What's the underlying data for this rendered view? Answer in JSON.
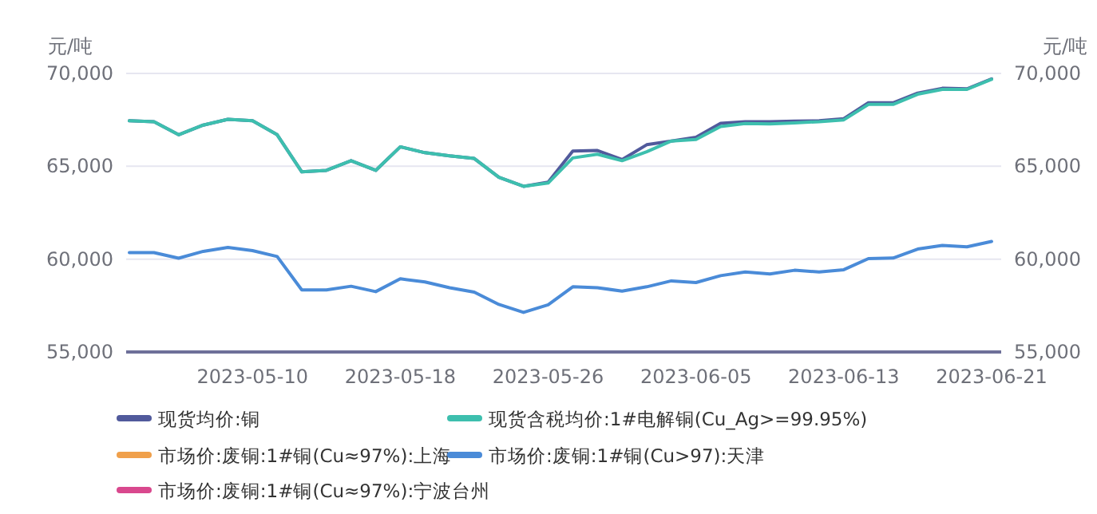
{
  "chart_data": {
    "type": "line",
    "ylabel": "元/吨",
    "y2label": "元/吨",
    "categories": [
      null,
      null,
      null,
      null,
      null,
      "2023-05-10",
      null,
      null,
      null,
      null,
      null,
      "2023-05-18",
      null,
      null,
      null,
      null,
      null,
      "2023-05-26",
      null,
      null,
      null,
      null,
      null,
      "2023-06-05",
      null,
      null,
      null,
      null,
      null,
      "2023-06-13",
      null,
      null,
      null,
      null,
      null,
      "2023-06-21"
    ],
    "ylim": [
      55000,
      70000
    ],
    "yticks": [
      {
        "value": 55000,
        "label": "55,000"
      },
      {
        "value": 60000,
        "label": "60,000"
      },
      {
        "value": 65000,
        "label": "65,000"
      },
      {
        "value": 70000,
        "label": "70,000"
      }
    ],
    "y2lim": [
      55000,
      70000
    ],
    "y2ticks": [
      {
        "value": 55000,
        "label": "55,000"
      },
      {
        "value": 60000,
        "label": "60,000"
      },
      {
        "value": 65000,
        "label": "65,000"
      },
      {
        "value": 70000,
        "label": "70,000"
      }
    ],
    "grid": "y",
    "legend": "bottom",
    "marker": "none",
    "line_style": "solid",
    "series": [
      {
        "name": "现货均价:铜",
        "color": "#515a9c",
        "values": [
          67450,
          67400,
          66700,
          67220,
          67530,
          67450,
          66700,
          64700,
          64780,
          65300,
          64780,
          66050,
          65730,
          65560,
          65420,
          64410,
          63920,
          64150,
          65820,
          65850,
          65360,
          66160,
          66360,
          66560,
          67310,
          67400,
          67400,
          67430,
          67450,
          67560,
          68420,
          68420,
          68940,
          69200,
          69170,
          69710
        ]
      },
      {
        "name": "现货含税均价:1#电解铜(Cu_Ag>=99.95%)",
        "color": "#3dbfae",
        "values": [
          67450,
          67400,
          66700,
          67220,
          67530,
          67450,
          66700,
          64700,
          64780,
          65300,
          64780,
          66050,
          65730,
          65560,
          65420,
          64410,
          63920,
          64100,
          65450,
          65650,
          65300,
          65780,
          66360,
          66440,
          67140,
          67300,
          67280,
          67340,
          67400,
          67500,
          68330,
          68330,
          68880,
          69140,
          69140,
          69680
        ]
      },
      {
        "name": "市场价:废铜:1#铜(Cu≈97%):上海",
        "color": "#f0a04b",
        "values": [
          null,
          null,
          null,
          null,
          null,
          null,
          null,
          null,
          null,
          null,
          null,
          null,
          null,
          null,
          null,
          null,
          null,
          null,
          null,
          null,
          null,
          null,
          null,
          null,
          null,
          null,
          null,
          null,
          null,
          null,
          null,
          null,
          null,
          null,
          null,
          null
        ]
      },
      {
        "name": "市场价:废铜:1#铜(Cu>97):天津",
        "color": "#4a8bd8",
        "values": [
          60350,
          60350,
          60050,
          60420,
          60630,
          60460,
          60140,
          58340,
          58340,
          58540,
          58250,
          58940,
          58770,
          58460,
          58220,
          57560,
          57130,
          57540,
          58510,
          58460,
          58280,
          58510,
          58830,
          58740,
          59110,
          59310,
          59200,
          59400,
          59310,
          59430,
          60030,
          60060,
          60540,
          60740,
          60660,
          60950
        ]
      },
      {
        "name": "市场价:废铜:1#铜(Cu≈97%):宁波台州",
        "color": "#d9488e",
        "values": [
          null,
          null,
          null,
          null,
          null,
          null,
          null,
          null,
          null,
          null,
          null,
          null,
          null,
          null,
          null,
          null,
          null,
          null,
          null,
          null,
          null,
          null,
          null,
          null,
          null,
          null,
          null,
          null,
          null,
          null,
          null,
          null,
          null,
          null,
          null,
          null
        ]
      }
    ]
  }
}
